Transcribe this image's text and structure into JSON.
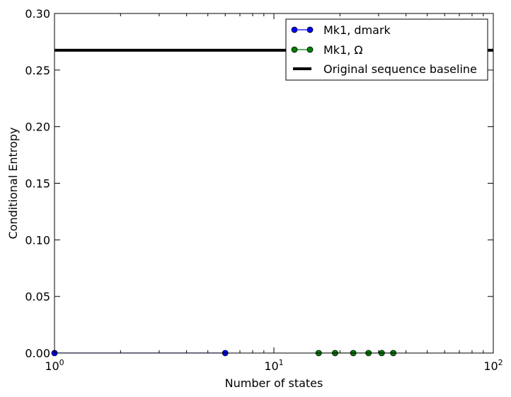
{
  "chart_data": {
    "type": "line",
    "xlabel": "Number of states",
    "ylabel": "Conditional Entropy",
    "xscale": "log",
    "xlim": [
      1,
      100
    ],
    "ylim": [
      0,
      0.3
    ],
    "x_ticks": [
      {
        "value": 1,
        "base": "10",
        "exp": "0"
      },
      {
        "value": 10,
        "base": "10",
        "exp": "1"
      },
      {
        "value": 100,
        "base": "10",
        "exp": "2"
      }
    ],
    "y_ticks": [
      "0.00",
      "0.05",
      "0.10",
      "0.15",
      "0.20",
      "0.25",
      "0.30"
    ],
    "grid": false,
    "legend_position": "top-right",
    "series": [
      {
        "name": "Mk1, dmark",
        "color": "#0000ff",
        "style": "line-marker",
        "x": [
          1,
          6
        ],
        "y": [
          0,
          0
        ]
      },
      {
        "name": "Mk1, Ω",
        "color": "#008000",
        "style": "line-marker",
        "x": [
          16,
          19,
          23,
          27,
          31,
          35
        ],
        "y": [
          0,
          0,
          0,
          0,
          0,
          0
        ]
      },
      {
        "name": "Original sequence baseline",
        "color": "#000000",
        "style": "hline",
        "y": 0.2675
      }
    ]
  }
}
